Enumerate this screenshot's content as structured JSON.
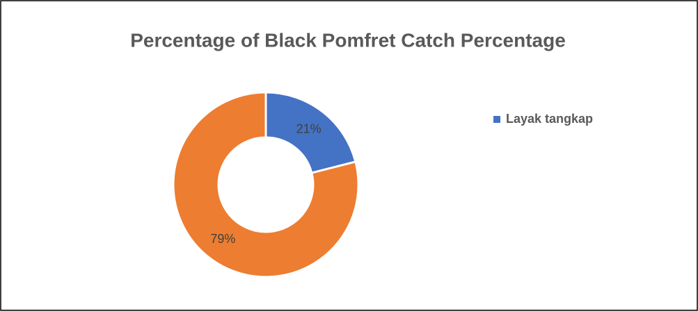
{
  "chart_data": {
    "type": "donut",
    "title": "Percentage of Black Pomfret Catch Percentage",
    "categories": [
      "Layak tangkap",
      null
    ],
    "values": [
      21,
      79
    ],
    "value_labels": [
      "21%",
      "79%"
    ],
    "colors": [
      "#4472c4",
      "#ed7d31"
    ],
    "legend": "right"
  }
}
